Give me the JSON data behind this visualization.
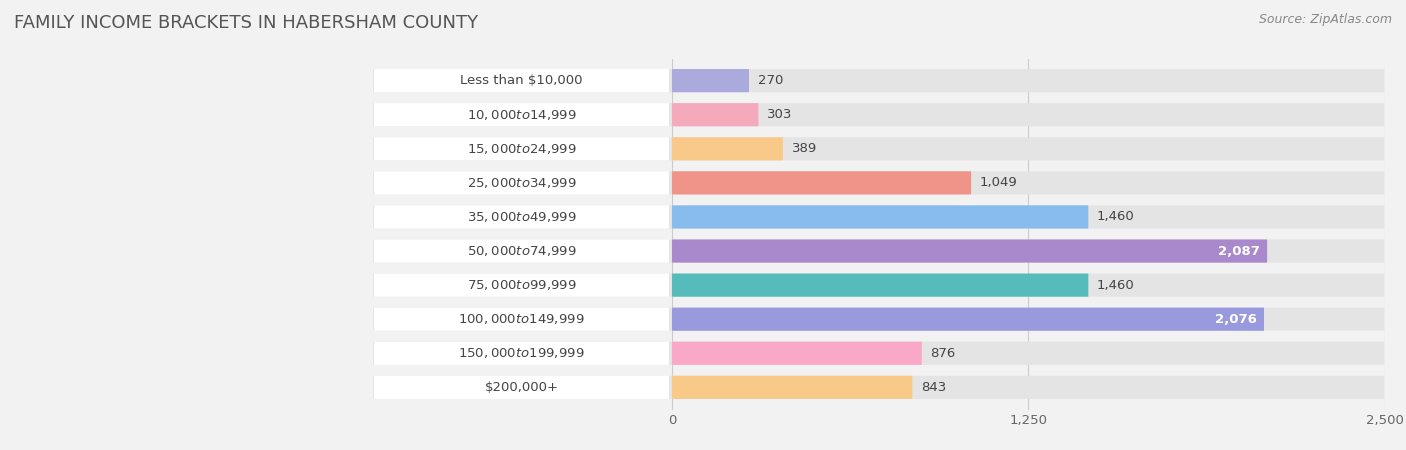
{
  "title": "FAMILY INCOME BRACKETS IN HABERSHAM COUNTY",
  "source": "Source: ZipAtlas.com",
  "categories": [
    "Less than $10,000",
    "$10,000 to $14,999",
    "$15,000 to $24,999",
    "$25,000 to $34,999",
    "$35,000 to $49,999",
    "$50,000 to $74,999",
    "$75,000 to $99,999",
    "$100,000 to $149,999",
    "$150,000 to $199,999",
    "$200,000+"
  ],
  "values": [
    270,
    303,
    389,
    1049,
    1460,
    2087,
    1460,
    2076,
    876,
    843
  ],
  "bar_colors": [
    "#aaaadd",
    "#f5aabb",
    "#f9c98a",
    "#f0948a",
    "#88bbee",
    "#aa88cc",
    "#55bbbb",
    "#9999dd",
    "#f9a8c8",
    "#f9c98a"
  ],
  "xlim_data": [
    0,
    2500
  ],
  "xticks": [
    0,
    1250,
    2500
  ],
  "title_color": "#555555",
  "title_fontsize": 13,
  "label_fontsize": 9.5,
  "value_fontsize": 9.5,
  "background_color": "#f2f2f2",
  "row_bg_color": "#e4e4e4",
  "label_bg_color": "#ffffff",
  "bar_height": 0.68,
  "white_text_threshold": 1900
}
